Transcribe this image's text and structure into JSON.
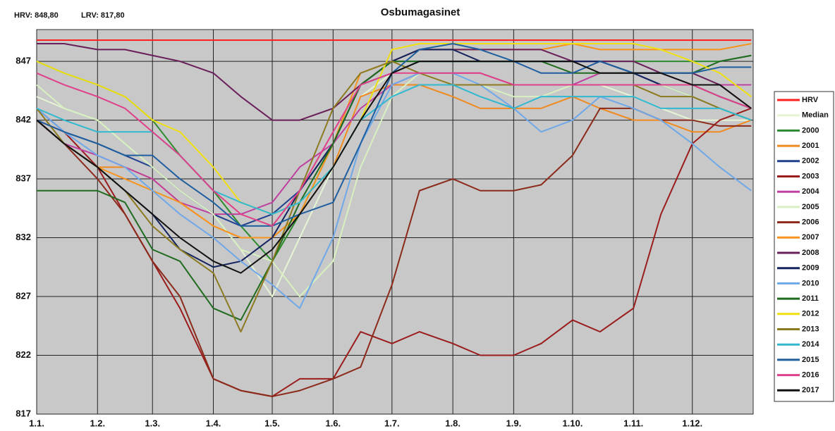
{
  "chart_data": {
    "type": "line",
    "title": "Osbumagasinet",
    "annotations": [
      "HRV: 848,80",
      "LRV: 817,80"
    ],
    "x": [
      1,
      15,
      32,
      46,
      60,
      74,
      91,
      105,
      121,
      135,
      152,
      166,
      182,
      196,
      213,
      227,
      244,
      258,
      274,
      288,
      305,
      319,
      335,
      349,
      365
    ],
    "xlim": [
      1,
      366
    ],
    "xticks": [
      {
        "value": 1,
        "label": "1.1."
      },
      {
        "value": 32,
        "label": "1.2."
      },
      {
        "value": 60,
        "label": "1.3."
      },
      {
        "value": 91,
        "label": "1.4."
      },
      {
        "value": 121,
        "label": "1.5."
      },
      {
        "value": 152,
        "label": "1.6."
      },
      {
        "value": 182,
        "label": "1.7."
      },
      {
        "value": 213,
        "label": "1.8."
      },
      {
        "value": 244,
        "label": "1.9."
      },
      {
        "value": 274,
        "label": "1.10."
      },
      {
        "value": 305,
        "label": "1.11."
      },
      {
        "value": 335,
        "label": "1.12."
      }
    ],
    "ylim": [
      817,
      849.7
    ],
    "yticks": [
      817,
      822,
      827,
      832,
      837,
      842,
      847
    ],
    "grid": true,
    "legend": "right",
    "series": [
      {
        "name": "HRV",
        "color": "#ff2020",
        "values": [
          848.8,
          848.8,
          848.8,
          848.8,
          848.8,
          848.8,
          848.8,
          848.8,
          848.8,
          848.8,
          848.8,
          848.8,
          848.8,
          848.8,
          848.8,
          848.8,
          848.8,
          848.8,
          848.8,
          848.8,
          848.8,
          848.8,
          848.8,
          848.8,
          848.8
        ]
      },
      {
        "name": "Median",
        "color": "#e4f4d4",
        "values": [
          844,
          843,
          842,
          840,
          838,
          836,
          834,
          831,
          827,
          832,
          838,
          844,
          846,
          846,
          845,
          845,
          845,
          845,
          845,
          845,
          844,
          843,
          842,
          842,
          842
        ]
      },
      {
        "name": "2000",
        "color": "#2e8b2e",
        "values": [
          847,
          846,
          845,
          844,
          842,
          839,
          836,
          833,
          830,
          834,
          840,
          845,
          847,
          847,
          847,
          847,
          847,
          847,
          847,
          847,
          847,
          847,
          847,
          847,
          847.5
        ]
      },
      {
        "name": "2001",
        "color": "#f08a20",
        "values": [
          842,
          840,
          838,
          838,
          837,
          835,
          833,
          832,
          832,
          834,
          838,
          844,
          845,
          845,
          844,
          843,
          843,
          843,
          844,
          843,
          842,
          842,
          841,
          841,
          842
        ]
      },
      {
        "name": "2002",
        "color": "#1f3f8f",
        "values": [
          843,
          841,
          840,
          839,
          838,
          836,
          834,
          833,
          834,
          836,
          840,
          845,
          846,
          847,
          847,
          847,
          847,
          847,
          847,
          847,
          846,
          845,
          844,
          843,
          842
        ]
      },
      {
        "name": "2003",
        "color": "#9b1c1c",
        "values": [
          842,
          841,
          838,
          834,
          830,
          826,
          820,
          819,
          818.5,
          820,
          820,
          824,
          823,
          824,
          823,
          822,
          822,
          823,
          825,
          824,
          826,
          834,
          840,
          842,
          843
        ]
      },
      {
        "name": "2004",
        "color": "#c040a0",
        "values": [
          842,
          840,
          839,
          838,
          837,
          835,
          834,
          834,
          835,
          838,
          840,
          843,
          845,
          846,
          846,
          846,
          845,
          845,
          845,
          846,
          846,
          846,
          845,
          845,
          845
        ]
      },
      {
        "name": "2005",
        "color": "#d8f0c0",
        "values": [
          845,
          843,
          842,
          840,
          838,
          836,
          834,
          831,
          830,
          827,
          830,
          838,
          844,
          846,
          846,
          845,
          844,
          844,
          845,
          845,
          845,
          845,
          844,
          843,
          842
        ]
      },
      {
        "name": "2006",
        "color": "#8b2a1a",
        "values": [
          842,
          840,
          837,
          834,
          830,
          827,
          820,
          819,
          818.5,
          819,
          820,
          821,
          828,
          836,
          837,
          836,
          836,
          836.5,
          839,
          843,
          843,
          842,
          842,
          841.5,
          841.5
        ]
      },
      {
        "name": "2007",
        "color": "#f7941d",
        "values": [
          842,
          840,
          838,
          837,
          836,
          835,
          833,
          832,
          832,
          834,
          840,
          846,
          847,
          848,
          848,
          848,
          848,
          848,
          848.5,
          848,
          848,
          848,
          848,
          848,
          848.5
        ]
      },
      {
        "name": "2008",
        "color": "#6a1f5a",
        "values": [
          848.5,
          848.5,
          848,
          848,
          847.5,
          847,
          846,
          844,
          842,
          842,
          843,
          845,
          847,
          848,
          848,
          848,
          848,
          848,
          847,
          847,
          847,
          846,
          846,
          845,
          843
        ]
      },
      {
        "name": "2009",
        "color": "#14235e",
        "values": [
          842,
          840,
          838,
          836,
          834,
          831,
          829.5,
          830,
          832,
          836,
          840,
          845,
          847,
          848,
          848,
          847,
          847,
          847,
          847,
          847,
          846,
          845,
          845,
          844,
          843
        ]
      },
      {
        "name": "2010",
        "color": "#6fa8e8",
        "values": [
          843,
          841,
          839,
          838,
          836,
          834,
          832,
          830,
          828,
          826,
          832,
          840,
          845,
          846,
          846,
          845,
          843,
          841,
          842,
          844,
          843,
          842,
          840,
          838,
          836
        ]
      },
      {
        "name": "2011",
        "color": "#1f6b1f",
        "values": [
          836,
          836,
          836,
          835,
          831,
          830,
          826,
          825,
          830,
          835,
          840,
          845,
          847,
          847,
          847,
          847,
          847,
          847,
          846,
          846,
          846,
          846,
          846,
          847,
          847.5
        ]
      },
      {
        "name": "2012",
        "color": "#f0e010",
        "values": [
          847,
          846,
          845,
          844,
          842,
          841,
          838,
          835,
          834,
          835,
          838,
          842,
          848,
          848.5,
          848.5,
          848.5,
          848.5,
          848.5,
          848.5,
          848.5,
          848.5,
          848,
          847,
          846,
          844
        ]
      },
      {
        "name": "2013",
        "color": "#8c7a20",
        "values": [
          843,
          840,
          838,
          836,
          833,
          831,
          829,
          824,
          830,
          836,
          843,
          846,
          847,
          846,
          845,
          845,
          845,
          845,
          845,
          845,
          845,
          844,
          844,
          843,
          842
        ]
      },
      {
        "name": "2014",
        "color": "#30b8d0",
        "values": [
          843,
          842,
          841,
          841,
          841,
          839,
          836,
          835,
          834,
          835,
          838,
          842,
          844,
          845,
          845,
          844,
          843,
          844,
          844,
          844,
          844,
          843,
          843,
          843,
          842
        ]
      },
      {
        "name": "2015",
        "color": "#1f5f9f",
        "values": [
          842,
          841,
          840,
          839,
          839,
          837,
          835,
          833,
          833,
          834,
          835,
          840,
          846,
          848,
          848.5,
          848,
          847,
          846,
          846,
          847,
          846,
          846,
          846,
          846.5,
          846.5
        ]
      },
      {
        "name": "2016",
        "color": "#e0408a",
        "values": [
          846,
          845,
          844,
          843,
          841,
          839,
          836,
          834,
          833,
          836,
          841,
          845,
          846,
          846,
          846,
          846,
          845,
          845,
          845,
          845,
          845,
          845,
          845,
          844,
          843
        ]
      },
      {
        "name": "2017",
        "color": "#111111",
        "values": [
          842,
          840,
          838,
          836,
          834,
          832,
          830,
          829,
          831,
          834,
          838,
          842,
          846,
          847,
          847,
          847,
          847,
          847,
          847,
          846,
          846,
          846,
          845,
          845,
          843
        ]
      }
    ]
  }
}
